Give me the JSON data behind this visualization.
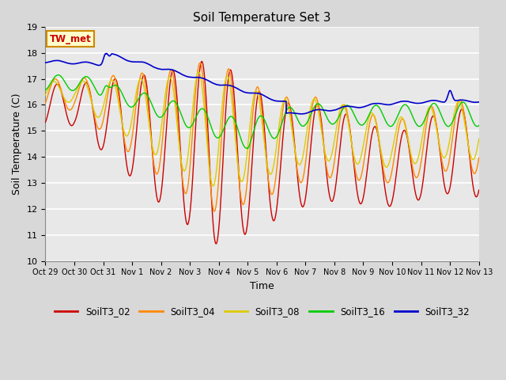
{
  "title": "Soil Temperature Set 3",
  "xlabel": "Time",
  "ylabel": "Soil Temperature (C)",
  "ylim": [
    10.0,
    19.0
  ],
  "yticks": [
    10.0,
    11.0,
    12.0,
    13.0,
    14.0,
    15.0,
    16.0,
    17.0,
    18.0,
    19.0
  ],
  "bg_color": "#d8d8d8",
  "plot_bg": "#e8e8e8",
  "grid_color": "#ffffff",
  "series": {
    "SoilT3_02": {
      "color": "#cc0000",
      "lw": 1.0
    },
    "SoilT3_04": {
      "color": "#ff8800",
      "lw": 1.0
    },
    "SoilT3_08": {
      "color": "#ddcc00",
      "lw": 1.0
    },
    "SoilT3_16": {
      "color": "#00cc00",
      "lw": 1.0
    },
    "SoilT3_32": {
      "color": "#0000cc",
      "lw": 1.2
    }
  },
  "annotation_label": "TW_met",
  "annotation_color": "#cc0000",
  "annotation_bg": "#ffffcc",
  "annotation_border": "#cc8800",
  "day_ticks": [
    0,
    24,
    48,
    72,
    96,
    120,
    144,
    168,
    192,
    216,
    240,
    264,
    288,
    312,
    336,
    360
  ],
  "day_labels": [
    "Oct 29",
    "Oct 30",
    "Oct 31",
    "Nov 1",
    "Nov 2",
    "Nov 3",
    "Nov 4",
    "Nov 5",
    "Nov 6",
    "Nov 7",
    "Nov 8",
    "Nov 9",
    "Nov 10",
    "Nov 11",
    "Nov 12",
    "Nov 13"
  ]
}
